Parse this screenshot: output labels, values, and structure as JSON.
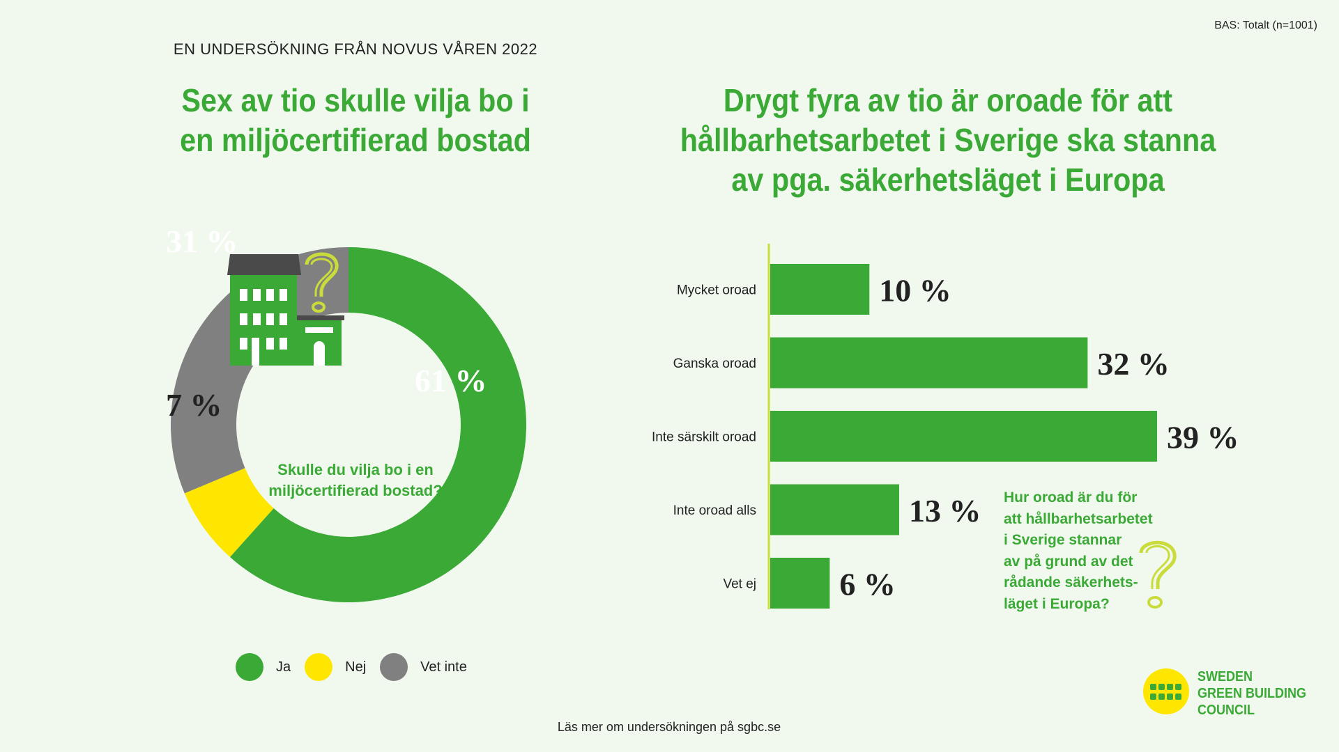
{
  "base_note": "BAS: Totalt (n=1001)",
  "survey_label": "EN UNDERSÖKNING FRÅN NOVUS VÅREN 2022",
  "left_title": [
    "Sex av tio skulle vilja bo i",
    "en miljöcertifierad bostad"
  ],
  "right_title": [
    "Drygt fyra av tio är oroade för att",
    "hållbarhetsarbetet i Sverige ska stanna",
    "av pga. säkerhetsläget i Europa"
  ],
  "center_question": [
    "Skulle du vilja bo i en",
    "miljöcertifierad bostad?"
  ],
  "side_question": [
    "Hur oroad är du för",
    "att hållbarhetsarbetet",
    "i Sverige stannar",
    "av på grund av det",
    "rådande säkerhets-",
    "läget i Europa?"
  ],
  "footer": "Läs mer om undersökningen på sgbc.se",
  "logo": {
    "lines": [
      "SWEDEN",
      "GREEN BUILDING",
      "COUNCIL"
    ]
  },
  "icons": {
    "building": "building-icon",
    "question_mark": "question-mark-icon",
    "logo": "sgbc-logo-icon"
  },
  "colors": {
    "green": "#3aa935",
    "yellow": "#ffe600",
    "gray": "#808080",
    "accent": "#c9dc3c"
  },
  "chart_data": [
    {
      "type": "pie",
      "variant": "donut",
      "categories": [
        "Ja",
        "Nej",
        "Vet inte"
      ],
      "values": [
        61,
        7,
        31
      ],
      "labels": [
        "61 %",
        "7 %",
        "31 %"
      ],
      "colors": [
        "#3aa935",
        "#ffe600",
        "#808080"
      ],
      "legend": "bottom"
    },
    {
      "type": "bar",
      "orientation": "horizontal",
      "categories": [
        "Mycket oroad",
        "Ganska oroad",
        "Inte särskilt oroad",
        "Inte oroad alls",
        "Vet ej"
      ],
      "values": [
        10,
        32,
        39,
        13,
        6
      ],
      "labels": [
        "10 %",
        "32 %",
        "39 %",
        "13 %",
        "6 %"
      ],
      "color": "#3aa935"
    }
  ]
}
